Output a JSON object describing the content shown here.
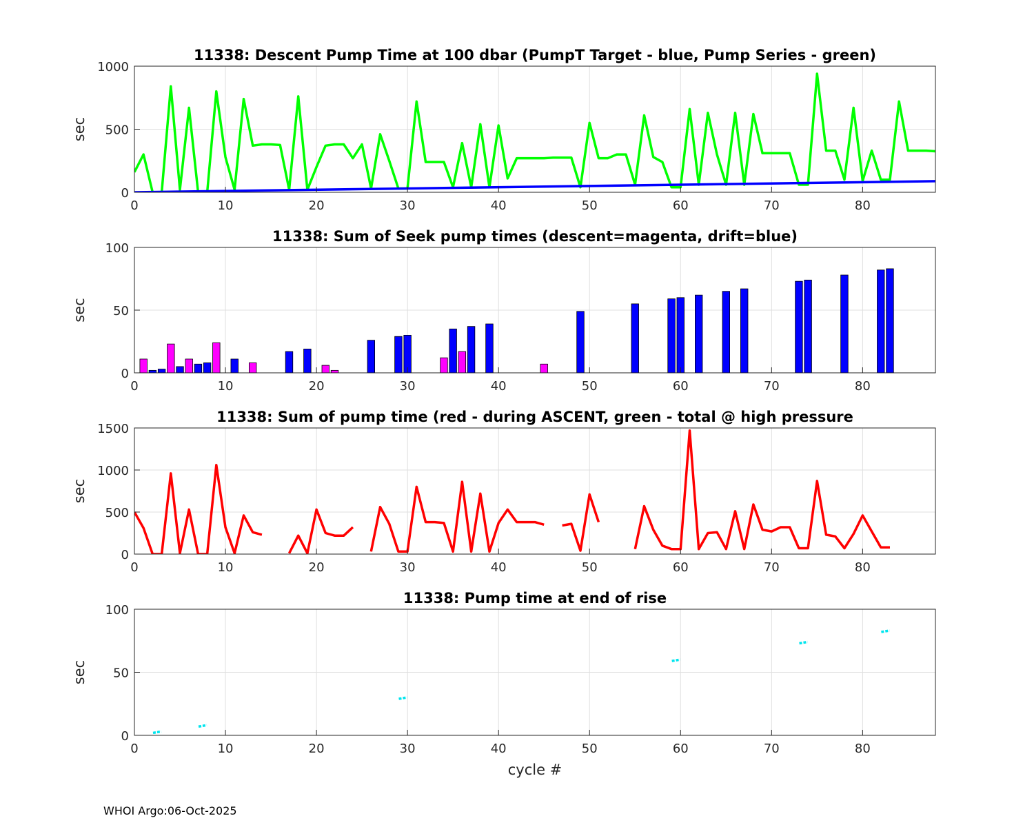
{
  "footer": "WHOI Argo:06-Oct-2025",
  "chart_data": [
    {
      "type": "line",
      "title": "11338: Descent Pump Time at 100 dbar (PumpT Target - blue, Pump Series - green)",
      "ylabel": "sec",
      "xlabel": "",
      "xlim": [
        0,
        88
      ],
      "ylim": [
        0,
        1000
      ],
      "xticks": [
        0,
        10,
        20,
        30,
        40,
        50,
        60,
        70,
        80
      ],
      "yticks": [
        0,
        500,
        1000
      ],
      "grid": true,
      "series": [
        {
          "color": "#00ff00",
          "x": [
            0,
            1,
            2,
            3,
            4,
            5,
            6,
            7,
            8,
            9,
            10,
            11,
            12,
            13,
            14,
            15,
            16,
            17,
            18,
            19,
            20,
            21,
            22,
            23,
            24,
            25,
            26,
            27,
            28,
            29,
            30,
            31,
            32,
            33,
            34,
            35,
            36,
            37,
            38,
            39,
            40,
            41,
            42,
            43,
            44,
            45,
            46,
            47,
            48,
            49,
            50,
            51,
            52,
            53,
            54,
            55,
            56,
            57,
            58,
            59,
            60,
            61,
            62,
            63,
            64,
            65,
            66,
            67,
            68,
            69,
            70,
            71,
            72,
            73,
            74,
            75,
            76,
            77,
            78,
            79,
            80,
            81,
            82,
            83,
            84,
            85,
            86,
            87,
            88
          ],
          "y": [
            160,
            300,
            0,
            0,
            840,
            20,
            670,
            0,
            0,
            800,
            280,
            20,
            740,
            370,
            380,
            380,
            375,
            20,
            760,
            20,
            200,
            370,
            380,
            380,
            270,
            380,
            30,
            460,
            250,
            30,
            30,
            720,
            240,
            240,
            240,
            40,
            390,
            40,
            540,
            40,
            530,
            110,
            270,
            270,
            270,
            270,
            275,
            275,
            275,
            40,
            550,
            270,
            270,
            300,
            300,
            60,
            610,
            280,
            240,
            40,
            40,
            660,
            60,
            630,
            300,
            60,
            630,
            60,
            620,
            310,
            310,
            310,
            310,
            60,
            60,
            940,
            330,
            330,
            100,
            670,
            90,
            330,
            100,
            100,
            720,
            330,
            330,
            330,
            325
          ]
        },
        {
          "color": "#0000ff",
          "x": [
            0,
            88
          ],
          "y": [
            0,
            88
          ]
        }
      ]
    },
    {
      "type": "bar",
      "title": "11338: Sum of Seek pump times (descent=magenta, drift=blue)",
      "ylabel": "sec",
      "xlabel": "",
      "xlim": [
        0,
        88
      ],
      "ylim": [
        0,
        100
      ],
      "xticks": [
        0,
        10,
        20,
        30,
        40,
        50,
        60,
        70,
        80
      ],
      "yticks": [
        0,
        50,
        100
      ],
      "grid": true,
      "series": [
        {
          "color": "#ff00ff",
          "x": [
            1,
            4,
            6,
            9,
            13,
            21,
            22,
            34,
            36,
            45
          ],
          "values": [
            11,
            23,
            11,
            24,
            8,
            6,
            2,
            12,
            17,
            7
          ]
        },
        {
          "color": "#0000ff",
          "x": [
            2,
            3,
            5,
            7,
            8,
            11,
            17,
            19,
            26,
            29,
            30,
            35,
            37,
            39,
            49,
            55,
            59,
            60,
            62,
            65,
            67,
            73,
            74,
            78,
            82,
            83
          ],
          "values": [
            2,
            3,
            5,
            7,
            8,
            11,
            17,
            19,
            26,
            29,
            30,
            35,
            37,
            39,
            49,
            55,
            59,
            60,
            62,
            65,
            67,
            73,
            74,
            78,
            82,
            83
          ]
        }
      ]
    },
    {
      "type": "line",
      "title": "11338: Sum of pump time (red - during ASCENT, green - total @ high pressure",
      "ylabel": "sec",
      "xlabel": "",
      "xlim": [
        0,
        88
      ],
      "ylim": [
        0,
        1500
      ],
      "xticks": [
        0,
        10,
        20,
        30,
        40,
        50,
        60,
        70,
        80
      ],
      "yticks": [
        0,
        500,
        1000,
        1500
      ],
      "grid": true,
      "series": [
        {
          "color": "#ff0000",
          "segments": [
            [
              [
                0,
                500
              ],
              [
                1,
                310
              ],
              [
                2,
                0
              ],
              [
                3,
                0
              ],
              [
                4,
                960
              ],
              [
                5,
                10
              ],
              [
                6,
                530
              ],
              [
                7,
                0
              ],
              [
                8,
                0
              ],
              [
                9,
                1060
              ],
              [
                10,
                320
              ],
              [
                11,
                10
              ],
              [
                12,
                460
              ],
              [
                13,
                260
              ],
              [
                14,
                230
              ]
            ],
            [
              [
                17,
                10
              ],
              [
                18,
                220
              ],
              [
                19,
                10
              ],
              [
                20,
                530
              ],
              [
                21,
                250
              ],
              [
                22,
                220
              ],
              [
                23,
                220
              ],
              [
                24,
                320
              ]
            ],
            [
              [
                26,
                30
              ],
              [
                27,
                560
              ],
              [
                28,
                360
              ],
              [
                29,
                30
              ],
              [
                30,
                30
              ],
              [
                31,
                800
              ],
              [
                32,
                380
              ],
              [
                33,
                380
              ],
              [
                34,
                370
              ],
              [
                35,
                30
              ],
              [
                36,
                860
              ],
              [
                37,
                30
              ],
              [
                38,
                720
              ],
              [
                39,
                30
              ],
              [
                40,
                370
              ],
              [
                41,
                530
              ],
              [
                42,
                380
              ],
              [
                43,
                380
              ],
              [
                44,
                380
              ],
              [
                45,
                350
              ]
            ],
            [
              [
                47,
                340
              ],
              [
                48,
                360
              ],
              [
                49,
                40
              ],
              [
                50,
                710
              ],
              [
                51,
                380
              ]
            ],
            [
              [
                55,
                60
              ],
              [
                56,
                570
              ],
              [
                57,
                290
              ],
              [
                58,
                100
              ],
              [
                59,
                60
              ],
              [
                60,
                60
              ],
              [
                61,
                1470
              ],
              [
                62,
                60
              ],
              [
                63,
                250
              ],
              [
                64,
                260
              ],
              [
                65,
                60
              ],
              [
                66,
                510
              ],
              [
                67,
                60
              ],
              [
                68,
                590
              ],
              [
                69,
                290
              ],
              [
                70,
                270
              ],
              [
                71,
                320
              ],
              [
                72,
                320
              ],
              [
                73,
                70
              ],
              [
                74,
                70
              ],
              [
                75,
                870
              ],
              [
                76,
                230
              ],
              [
                77,
                210
              ],
              [
                78,
                70
              ],
              [
                79,
                240
              ],
              [
                80,
                460
              ],
              [
                81,
                270
              ],
              [
                82,
                80
              ],
              [
                83,
                80
              ]
            ]
          ]
        }
      ]
    },
    {
      "type": "scatter",
      "title": "11338: Pump time at end of rise",
      "ylabel": "sec",
      "xlabel": "cycle #",
      "xlim": [
        0,
        88
      ],
      "ylim": [
        0,
        100
      ],
      "xticks": [
        0,
        10,
        20,
        30,
        40,
        50,
        60,
        70,
        80
      ],
      "yticks": [
        0,
        50,
        100
      ],
      "grid": true,
      "series": [
        {
          "color": "#00e5ee",
          "x": [
            2.5,
            7.5,
            29.5,
            59.5,
            73.5,
            82.5
          ],
          "y": [
            2.5,
            7.5,
            29.5,
            59.5,
            73.5,
            82.5
          ]
        }
      ]
    }
  ]
}
